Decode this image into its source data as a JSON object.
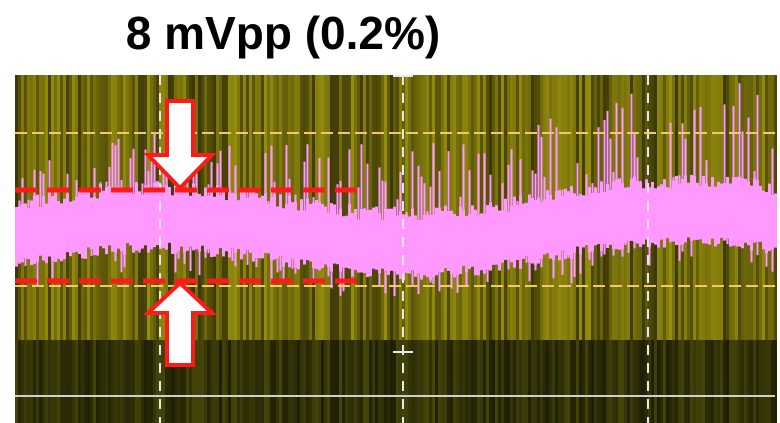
{
  "title": "8 mVpp (0.2%)"
}
